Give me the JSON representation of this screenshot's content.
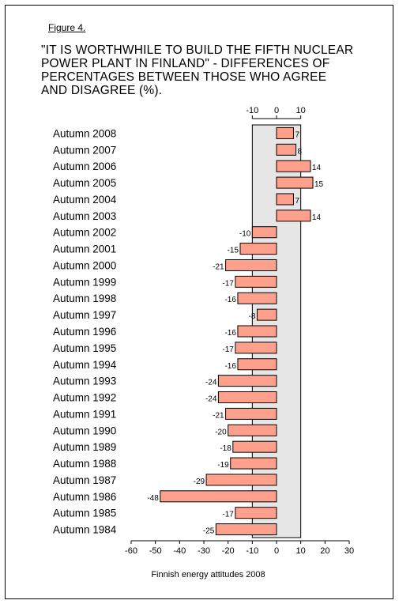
{
  "figure_label": "Figure 4.",
  "footer": "Finnish energy attitudes 2008",
  "colors": {
    "bar_fill": "#ffa08c",
    "band_fill": "#e6e6e6",
    "outline": "#000000"
  },
  "chart_data": {
    "type": "bar",
    "orientation": "horizontal",
    "title": "\"IT IS WORTHWHILE TO BUILD THE FIFTH NUCLEAR POWER PLANT IN FINLAND\" - DIFFERENCES OF PERCENTAGES BETWEEN THOSE WHO AGREE AND DISAGREE (%).",
    "xlabel": "",
    "ylabel": "",
    "categories": [
      "Autumn 2008",
      "Autumn 2007",
      "Autumn 2006",
      "Autumn 2005",
      "Autumn 2004",
      "Autumn 2003",
      "Autumn 2002",
      "Autumn 2001",
      "Autumn 2000",
      "Autumn 1999",
      "Autumn 1998",
      "Autumn 1997",
      "Autumn 1996",
      "Autumn 1995",
      "Autumn 1994",
      "Autumn 1993",
      "Autumn 1992",
      "Autumn 1991",
      "Autumn 1990",
      "Autumn 1989",
      "Autumn 1988",
      "Autumn 1987",
      "Autumn 1986",
      "Autumn 1985",
      "Autumn 1984"
    ],
    "values": [
      7,
      8,
      14,
      15,
      7,
      14,
      -10,
      -15,
      -21,
      -17,
      -16,
      -8,
      -16,
      -17,
      -16,
      -24,
      -24,
      -21,
      -20,
      -18,
      -19,
      -29,
      -48,
      -17,
      -25
    ],
    "xlim": [
      -60,
      30
    ],
    "xticks": [
      -60,
      -50,
      -40,
      -30,
      -20,
      -10,
      0,
      10,
      20,
      30
    ],
    "shaded_band": [
      -10,
      10
    ],
    "top_ticks": [
      -10,
      0,
      10
    ],
    "grid": false
  }
}
